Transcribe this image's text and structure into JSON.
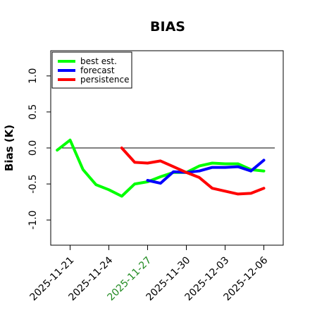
{
  "chart_data": {
    "type": "line",
    "title": "BIAS",
    "ylabel": "Bias (K)",
    "xlabel": "",
    "ylim": [
      -1.35,
      1.35
    ],
    "yticks": [
      -1.0,
      -0.5,
      0.0,
      0.5,
      1.0
    ],
    "ytick_labels": [
      "-1.0",
      "-0.5",
      "0.0",
      "0.5",
      "1.0"
    ],
    "xlim": [
      "2025-11-19T12:00",
      "2025-12-07T12:00"
    ],
    "xticks": [
      "2025-11-21",
      "2025-11-24",
      "2025-11-27",
      "2025-11-30",
      "2025-12-03",
      "2025-12-06"
    ],
    "highlight_tick": "2025-11-27",
    "highlight_color": "#228b22",
    "hline": 0.0,
    "legend_position": "top-left",
    "series": [
      {
        "name": "best est.",
        "color": "#00ff00",
        "x": [
          "2025-11-20",
          "2025-11-21",
          "2025-11-22",
          "2025-11-23",
          "2025-11-24",
          "2025-11-25",
          "2025-11-26",
          "2025-11-27",
          "2025-11-28",
          "2025-11-29",
          "2025-11-30",
          "2025-12-01",
          "2025-12-02",
          "2025-12-03",
          "2025-12-04",
          "2025-12-05",
          "2025-12-06"
        ],
        "values": [
          -0.03,
          0.11,
          -0.3,
          -0.51,
          -0.58,
          -0.67,
          -0.5,
          -0.47,
          -0.4,
          -0.34,
          -0.34,
          -0.25,
          -0.21,
          -0.22,
          -0.22,
          -0.3,
          -0.32
        ]
      },
      {
        "name": "forecast",
        "color": "#0000ff",
        "x": [
          "2025-11-27",
          "2025-11-28",
          "2025-11-29",
          "2025-11-30",
          "2025-12-01",
          "2025-12-02",
          "2025-12-03",
          "2025-12-04",
          "2025-12-05",
          "2025-12-06"
        ],
        "values": [
          -0.45,
          -0.49,
          -0.33,
          -0.34,
          -0.32,
          -0.27,
          -0.27,
          -0.26,
          -0.32,
          -0.17
        ]
      },
      {
        "name": "persistence",
        "color": "#ff0000",
        "x": [
          "2025-11-25",
          "2025-11-26",
          "2025-11-27",
          "2025-11-28",
          "2025-11-29",
          "2025-11-30",
          "2025-12-01",
          "2025-12-02",
          "2025-12-03",
          "2025-12-04",
          "2025-12-05",
          "2025-12-06"
        ],
        "values": [
          0.0,
          -0.2,
          -0.21,
          -0.18,
          -0.26,
          -0.34,
          -0.41,
          -0.56,
          -0.6,
          -0.64,
          -0.63,
          -0.56
        ]
      }
    ]
  }
}
